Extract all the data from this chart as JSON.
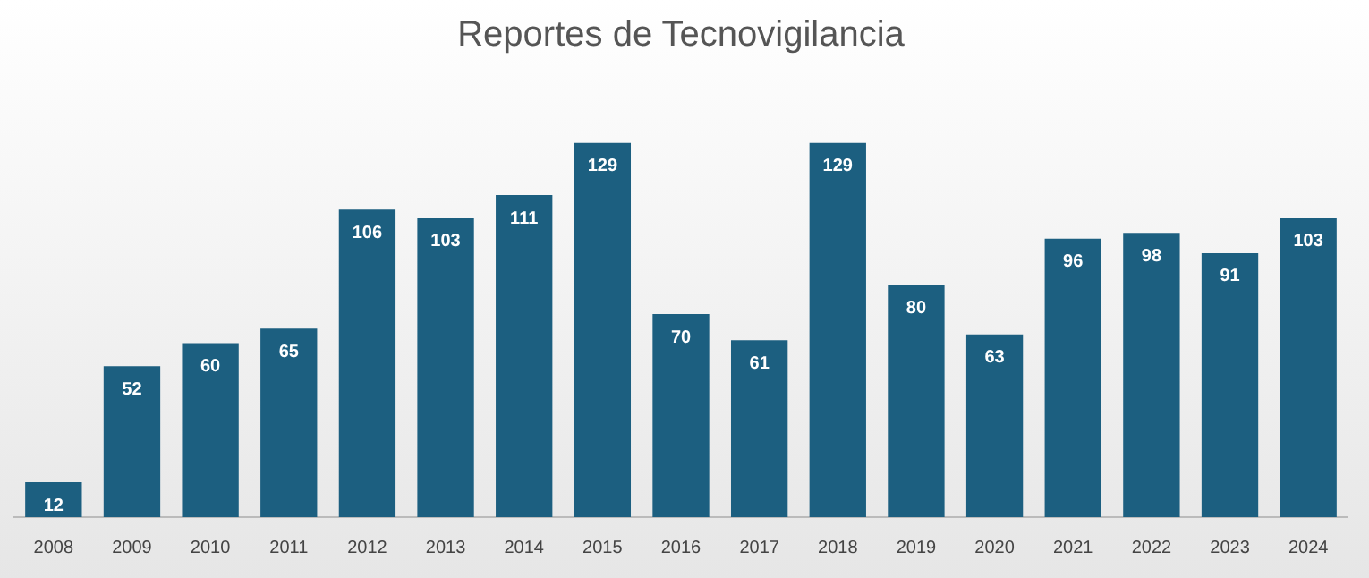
{
  "chart_data": {
    "type": "bar",
    "title": "Reportes de Tecnovigilancia",
    "categories": [
      "2008",
      "2009",
      "2010",
      "2011",
      "2012",
      "2013",
      "2014",
      "2015",
      "2016",
      "2017",
      "2018",
      "2019",
      "2020",
      "2021",
      "2022",
      "2023",
      "2024"
    ],
    "values": [
      12,
      52,
      60,
      65,
      106,
      103,
      111,
      129,
      70,
      61,
      129,
      80,
      63,
      96,
      98,
      91,
      103
    ],
    "color": "#1c5f80",
    "data_labels": true,
    "grid": false,
    "legend": false,
    "tick_labels": "x"
  }
}
